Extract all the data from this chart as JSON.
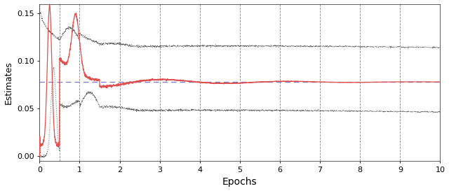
{
  "title": "",
  "xlabel": "Epochs",
  "ylabel": "Estimates",
  "xlim": [
    0,
    10
  ],
  "ylim": [
    -0.005,
    0.16
  ],
  "yticks": [
    0.0,
    0.05,
    0.1,
    0.15
  ],
  "xticks": [
    0,
    1,
    2,
    3,
    4,
    5,
    6,
    7,
    8,
    9,
    10
  ],
  "true_value": 0.078,
  "vlines": [
    0.0,
    0.5,
    1.0,
    2.0,
    3.0,
    4.0,
    5.0,
    6.0,
    7.0,
    8.0,
    9.0,
    10.0
  ],
  "red_color": "#e05050",
  "gray_color": "#555555",
  "blue_color": "#7777cc",
  "background_color": "#ffffff",
  "figsize": [
    6.4,
    2.73
  ],
  "dpi": 100
}
